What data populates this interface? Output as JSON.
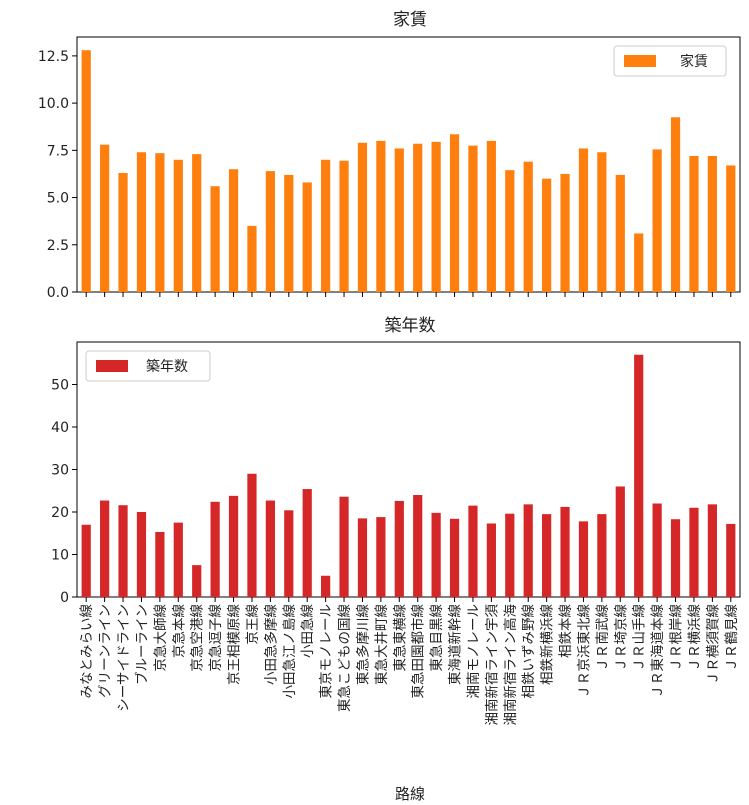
{
  "xlabel": "路線",
  "categories": [
    "みなとみらい線",
    "グリーンライン",
    "シーサイドライン",
    "ブルーライン",
    "京急大師線",
    "京急本線",
    "京急空港線",
    "京急逗子線",
    "京王相模原線",
    "京王線",
    "小田急多摩線",
    "小田急江ノ島線",
    "小田急線",
    "東京モノレール",
    "東急こどもの国線",
    "東急多摩川線",
    "東急大井町線",
    "東急東横線",
    "東急田園都市線",
    "東急目黒線",
    "東海道新幹線",
    "湘南モノレール",
    "湘南新宿ライン宇須",
    "湘南新宿ライン高海",
    "相鉄いずみ野線",
    "相鉄新横浜線",
    "相鉄本線",
    "ＪＲ京浜東北線",
    "ＪＲ南武線",
    "ＪＲ埼京線",
    "ＪＲ山手線",
    "ＪＲ東海道本線",
    "ＪＲ根岸線",
    "ＪＲ横浜線",
    "ＪＲ横須賀線",
    "ＪＲ鶴見線"
  ],
  "chart_data": [
    {
      "type": "bar",
      "title": "家賃",
      "legend": "top-right",
      "ylim": [
        0,
        13.5
      ],
      "yticks": [
        "0.0",
        "2.5",
        "5.0",
        "7.5",
        "10.0",
        "12.5"
      ],
      "series": [
        {
          "name": "家賃",
          "color": "#ff7f0e",
          "values": [
            12.8,
            7.8,
            6.3,
            7.4,
            7.35,
            7.0,
            7.3,
            5.6,
            6.5,
            3.5,
            6.4,
            6.2,
            5.8,
            7.0,
            6.95,
            7.9,
            8.0,
            7.6,
            7.85,
            7.95,
            8.35,
            7.75,
            8.0,
            6.45,
            6.9,
            6.0,
            6.25,
            7.6,
            7.4,
            6.2,
            3.1,
            7.55,
            9.25,
            7.2,
            7.2,
            6.7
          ]
        }
      ]
    },
    {
      "type": "bar",
      "title": "築年数",
      "legend": "top-left",
      "ylim": [
        0,
        60
      ],
      "yticks": [
        "0",
        "10",
        "20",
        "30",
        "40",
        "50"
      ],
      "series": [
        {
          "name": "築年数",
          "color": "#d62728",
          "values": [
            17,
            22.7,
            21.6,
            20,
            15.3,
            17.5,
            7.5,
            22.4,
            23.8,
            29,
            22.7,
            20.4,
            25.4,
            5,
            23.6,
            18.5,
            18.8,
            22.6,
            24,
            19.8,
            18.4,
            21.5,
            17.3,
            19.6,
            21.8,
            19.5,
            21.2,
            17.8,
            19.5,
            26,
            57,
            22,
            18.3,
            21,
            21.8,
            17.2
          ]
        }
      ]
    }
  ]
}
